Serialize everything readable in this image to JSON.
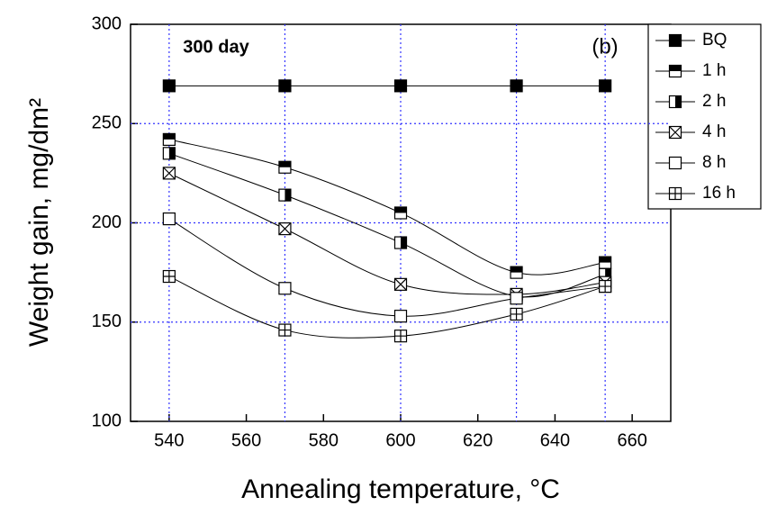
{
  "chart_data": {
    "type": "line",
    "annotations": [
      "300 day",
      "(b)"
    ],
    "x_label": "Annealing temperature, °C",
    "y_label": "Weight gain, mg/dm²",
    "x": [
      540,
      570,
      600,
      630,
      653
    ],
    "series": [
      {
        "name": "BQ",
        "marker": "filled",
        "color": "#000000",
        "values": [
          269,
          269,
          269,
          269,
          269
        ]
      },
      {
        "name": "1 h",
        "marker": "top-half",
        "color": "#000000",
        "values": [
          242,
          228,
          205,
          175,
          180
        ]
      },
      {
        "name": "2 h",
        "marker": "right-half",
        "color": "#000000",
        "values": [
          235,
          214,
          190,
          163,
          174
        ]
      },
      {
        "name": "4 h",
        "marker": "cross",
        "color": "#000000",
        "values": [
          225,
          197,
          169,
          164,
          170
        ]
      },
      {
        "name": "8 h",
        "marker": "open",
        "color": "#000000",
        "values": [
          202,
          167,
          153,
          162,
          168
        ]
      },
      {
        "name": "16 h",
        "marker": "plus",
        "color": "#000000",
        "values": [
          173,
          146,
          143,
          154,
          168
        ]
      }
    ],
    "xlim": [
      530,
      670
    ],
    "xticks": [
      540,
      560,
      580,
      600,
      620,
      640,
      660
    ],
    "ylim": [
      100,
      300
    ],
    "yticks": [
      100,
      150,
      200,
      250,
      300
    ],
    "grid": true,
    "legend": "outside-right"
  }
}
